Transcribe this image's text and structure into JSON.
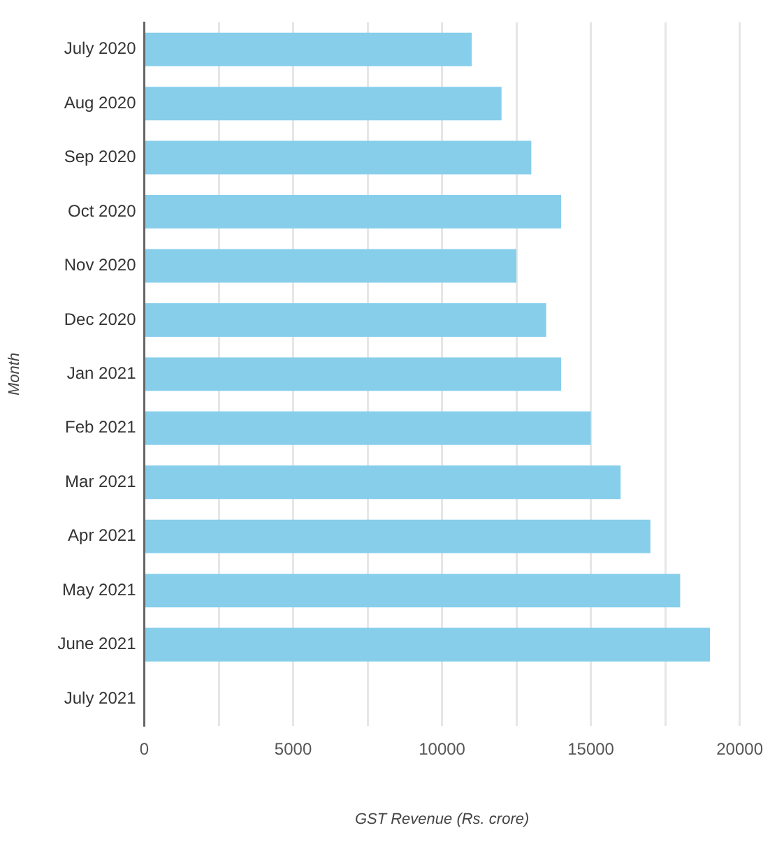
{
  "chart_data": {
    "type": "bar",
    "orientation": "horizontal",
    "xlabel": "GST Revenue (Rs. crore)",
    "ylabel": "Month",
    "categories": [
      "July 2020",
      "Aug 2020",
      "Sep 2020",
      "Oct 2020",
      "Nov 2020",
      "Dec 2020",
      "Jan 2021",
      "Feb 2021",
      "Mar 2021",
      "Apr 2021",
      "May 2021",
      "June 2021",
      "July 2021"
    ],
    "values": [
      11000,
      12000,
      13000,
      14000,
      12500,
      13500,
      14000,
      15000,
      16000,
      17000,
      18000,
      19000,
      null
    ],
    "color": "#87ceeb",
    "xlim": [
      0,
      20000
    ],
    "xticks": [
      0,
      {
        "value": 2500,
        "label": null
      },
      5000,
      {
        "value": 7500,
        "label": null
      },
      10000,
      {
        "value": 12500,
        "label": null
      },
      15000,
      {
        "value": 17500,
        "label": null
      },
      20000
    ],
    "grid": "x",
    "legend": false
  }
}
